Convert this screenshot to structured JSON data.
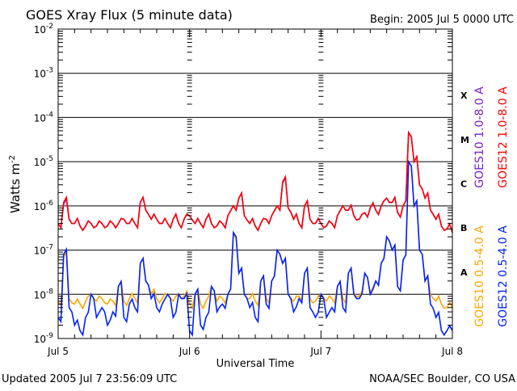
{
  "chart_data": {
    "type": "line",
    "title": "GOES Xray Flux (5 minute data)",
    "begin_label": "Begin:  2005 Jul 5 0000 UTC",
    "xlabel": "Universal Time",
    "ylabel": "Watts m",
    "ylabel_sup": "-2",
    "y_scale": "log",
    "ylim": [
      1e-09,
      0.01
    ],
    "y_ticks": [
      {
        "value": 0.01,
        "base": "10",
        "exp": "-2"
      },
      {
        "value": 0.001,
        "base": "10",
        "exp": "-3"
      },
      {
        "value": 0.0001,
        "base": "10",
        "exp": "-4"
      },
      {
        "value": 1e-05,
        "base": "10",
        "exp": "-5"
      },
      {
        "value": 1e-06,
        "base": "10",
        "exp": "-6"
      },
      {
        "value": 1e-07,
        "base": "10",
        "exp": "-7"
      },
      {
        "value": 1e-08,
        "base": "10",
        "exp": "-8"
      },
      {
        "value": 1e-09,
        "base": "10",
        "exp": "-9"
      }
    ],
    "x_unit": "hours since Jul 5 0000 UTC",
    "xlim": [
      0,
      72
    ],
    "x_ticks": [
      {
        "value": 0,
        "label": "Jul 5"
      },
      {
        "value": 24,
        "label": "Jul 6"
      },
      {
        "value": 48,
        "label": "Jul 7"
      },
      {
        "value": 72,
        "label": "Jul 8"
      }
    ],
    "flare_classes": [
      {
        "label": "X",
        "low": 0.0001
      },
      {
        "label": "M",
        "low": 1e-05
      },
      {
        "label": "C",
        "low": 1e-06
      },
      {
        "label": "B",
        "low": 1e-07
      },
      {
        "label": "A",
        "low": 1e-08
      }
    ],
    "grid": "horizontal at decades",
    "legend_position": "right, vertical text",
    "series": [
      {
        "name": "GOES10 1.0-8.0 A",
        "color": "#7b1fc8",
        "values": [
          4e-07,
          1.1e-06,
          5e-07,
          4e-07,
          3.5e-07,
          3.5e-07,
          4e-07,
          3.5e-07,
          4e-07,
          3.5e-07,
          4e-07,
          4e-07,
          5e-07,
          4e-07,
          4e-07,
          1.2e-06,
          8e-07,
          5e-07,
          5e-07,
          4e-07,
          4e-07,
          5e-07,
          4e-07,
          5e-07,
          6e-07,
          4e-07,
          4e-07,
          5e-07,
          4e-07,
          3.5e-07,
          4e-07,
          6e-07,
          1e-06,
          1.5e-06,
          6e-07,
          4e-07,
          3.5e-07,
          4e-07,
          5e-07,
          6e-07,
          1e-06,
          3.3e-06,
          9e-07,
          5e-07,
          4e-07,
          1e-06,
          5e-07,
          4e-07,
          4e-07,
          3.5e-07,
          4e-07,
          6e-07,
          1e-06,
          8e-07,
          6e-07,
          5e-07,
          7e-07,
          9e-07,
          8e-07,
          1e-06,
          1.5e-06,
          1.2e-06,
          7e-07,
          1e-06,
          4.6e-05,
          1e-05,
          3e-06,
          1.5e-06,
          8e-07,
          5e-07,
          3.5e-07,
          3e-07,
          2.5e-07
        ]
      },
      {
        "name": "GOES12 1.0-8.0 A",
        "color": "#ff0000",
        "values": [
          4e-07,
          1.2e-06,
          5e-07,
          4e-07,
          3.5e-07,
          3.5e-07,
          4e-07,
          3.5e-07,
          4e-07,
          3.5e-07,
          4e-07,
          4e-07,
          5e-07,
          4e-07,
          4e-07,
          1.2e-06,
          8e-07,
          5e-07,
          5e-07,
          4e-07,
          4e-07,
          5e-07,
          4e-07,
          5e-07,
          6e-07,
          4e-07,
          4e-07,
          5e-07,
          4e-07,
          3.5e-07,
          4e-07,
          6e-07,
          1e-06,
          1.5e-06,
          6e-07,
          4e-07,
          3.5e-07,
          4e-07,
          5e-07,
          6e-07,
          1e-06,
          3.5e-06,
          9e-07,
          5e-07,
          4e-07,
          1e-06,
          5e-07,
          4e-07,
          4e-07,
          3.5e-07,
          4e-07,
          6e-07,
          1e-06,
          8e-07,
          6e-07,
          5e-07,
          7e-07,
          9e-07,
          8e-07,
          1e-06,
          1.5e-06,
          1.2e-06,
          7e-07,
          1e-06,
          4.5e-05,
          1e-05,
          3e-06,
          1.5e-06,
          8e-07,
          5e-07,
          3.5e-07,
          3e-07,
          2.5e-07
        ]
      },
      {
        "name": "GOES10 0.5-4.0 A",
        "color": "#ffa500",
        "values": [
          7e-09,
          7e-08,
          8e-09,
          6e-09,
          6e-09,
          7e-09,
          1e-08,
          7e-09,
          8e-09,
          6e-09,
          7e-09,
          1.5e-08,
          7e-09,
          8e-09,
          8e-09,
          5e-08,
          2e-08,
          1e-08,
          8e-09,
          8e-09,
          1e-08,
          7e-09,
          1e-08,
          9e-09,
          6e-09,
          1e-08,
          6e-09,
          7e-09,
          1.5e-08,
          7e-09,
          8e-09,
          1e-08,
          2.3e-07,
          3e-08,
          1e-08,
          8e-09,
          7e-09,
          2e-08,
          8e-09,
          2e-08,
          1e-07,
          5e-08,
          1e-08,
          7e-09,
          9e-09,
          3e-08,
          8e-09,
          7e-09,
          1e-08,
          7e-09,
          8e-09,
          1.5e-08,
          8e-09,
          3e-08,
          1.1e-08,
          9e-09,
          3e-08,
          1.1e-08,
          2e-08,
          5e-08,
          2e-07,
          1e-07,
          1.5e-08,
          6e-08,
          1e-05,
          1e-06,
          1e-07,
          2e-08,
          1e-08,
          7e-09,
          6e-09,
          5e-09,
          5e-09
        ]
      },
      {
        "name": "GOES12 0.5-4.0 A",
        "color": "#0022ff",
        "values": [
          3e-09,
          8e-08,
          5e-09,
          2e-09,
          1.5e-09,
          3e-09,
          1e-08,
          3e-09,
          5e-09,
          2e-09,
          4e-09,
          1.5e-08,
          3e-09,
          6e-09,
          5e-09,
          5e-08,
          2e-08,
          8e-09,
          5e-09,
          6e-09,
          1e-08,
          3e-09,
          1e-08,
          8e-09,
          1.5e-09,
          1e-08,
          2e-09,
          3e-09,
          1.5e-08,
          4e-09,
          6e-09,
          1e-08,
          2.5e-07,
          3e-08,
          1e-08,
          5e-09,
          3e-09,
          2e-08,
          6e-09,
          2e-08,
          1e-07,
          5e-08,
          1e-08,
          4e-09,
          8e-09,
          3e-08,
          5e-09,
          3e-09,
          1e-08,
          3e-09,
          5e-09,
          1.5e-08,
          5e-09,
          3e-08,
          1e-08,
          8e-09,
          3e-08,
          1e-08,
          2e-08,
          5e-08,
          2e-07,
          1e-07,
          1.5e-08,
          6e-08,
          1e-05,
          1e-06,
          1e-07,
          2e-08,
          6e-09,
          3e-09,
          1.5e-09,
          1.5e-09,
          1.5e-09
        ]
      }
    ]
  },
  "footer": {
    "updated": "Updated 2005 Jul  7 23:56:09 UTC",
    "source": "NOAA/SEC Boulder, CO USA"
  }
}
